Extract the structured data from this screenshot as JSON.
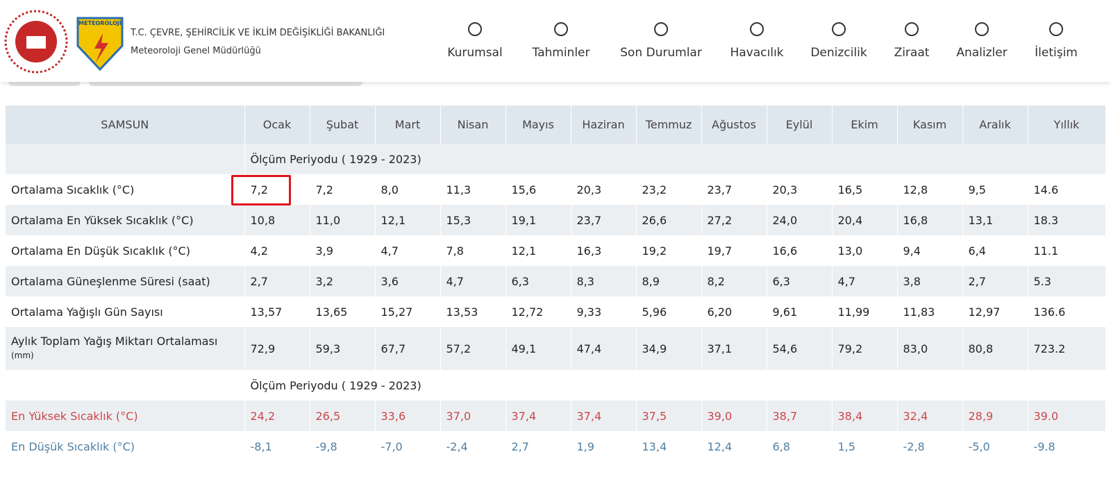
{
  "header": {
    "ministry": "T.C. ÇEVRE, ŞEHİRCİLİK VE İKLİM DEĞİŞİKLİĞİ BAKANLIĞI",
    "directorate": "Meteoroloji Genel Müdürlüğü",
    "logo_text": "METEOROLOJİ"
  },
  "nav": [
    "Kurumsal",
    "Tahminler",
    "Son Durumlar",
    "Havacılık",
    "Denizcilik",
    "Ziraat",
    "Analizler",
    "İletişim"
  ],
  "table": {
    "city": "SAMSUN",
    "columns": [
      "Ocak",
      "Şubat",
      "Mart",
      "Nisan",
      "Mayıs",
      "Haziran",
      "Temmuz",
      "Ağustos",
      "Eylül",
      "Ekim",
      "Kasım",
      "Aralık",
      "Yıllık"
    ],
    "sections": [
      {
        "period": "Ölçüm Periyodu ( 1929 - 2023)",
        "rows": [
          {
            "label": "Ortalama Sıcaklık (°C)",
            "values": [
              "7,2",
              "7,2",
              "8,0",
              "11,3",
              "15,6",
              "20,3",
              "23,2",
              "23,7",
              "20,3",
              "16,5",
              "12,8",
              "9,5",
              "14.6"
            ]
          },
          {
            "label": "Ortalama En Yüksek Sıcaklık (°C)",
            "values": [
              "10,8",
              "11,0",
              "12,1",
              "15,3",
              "19,1",
              "23,7",
              "26,6",
              "27,2",
              "24,0",
              "20,4",
              "16,8",
              "13,1",
              "18.3"
            ]
          },
          {
            "label": "Ortalama En Düşük Sıcaklık (°C)",
            "values": [
              "4,2",
              "3,9",
              "4,7",
              "7,8",
              "12,1",
              "16,3",
              "19,2",
              "19,7",
              "16,6",
              "13,0",
              "9,4",
              "6,4",
              "11.1"
            ]
          },
          {
            "label": "Ortalama Güneşlenme Süresi (saat)",
            "values": [
              "2,7",
              "3,2",
              "3,6",
              "4,7",
              "6,3",
              "8,3",
              "8,9",
              "8,2",
              "6,3",
              "4,7",
              "3,8",
              "2,7",
              "5.3"
            ]
          },
          {
            "label": "Ortalama Yağışlı Gün Sayısı",
            "values": [
              "13,57",
              "13,65",
              "15,27",
              "13,53",
              "12,72",
              "9,33",
              "5,96",
              "6,20",
              "9,61",
              "11,99",
              "11,83",
              "12,97",
              "136.6"
            ]
          },
          {
            "label": "Aylık Toplam Yağış Miktarı Ortalaması",
            "unit": "(mm)",
            "values": [
              "72,9",
              "59,3",
              "67,7",
              "57,2",
              "49,1",
              "47,4",
              "34,9",
              "37,1",
              "54,6",
              "79,2",
              "83,0",
              "80,8",
              "723.2"
            ]
          }
        ]
      },
      {
        "period": "Ölçüm Periyodu ( 1929 - 2023)",
        "rows": [
          {
            "label": "En Yüksek Sıcaklık (°C)",
            "color": "#c9474b",
            "values": [
              "24,2",
              "26,5",
              "33,6",
              "37,0",
              "37,4",
              "37,4",
              "37,5",
              "39,0",
              "38,7",
              "38,4",
              "32,4",
              "28,9",
              "39.0"
            ]
          },
          {
            "label": "En Düşük Sıcaklık (°C)",
            "color": "#4f7fa3",
            "values": [
              "-8,1",
              "-9,8",
              "-7,0",
              "-2,4",
              "2,7",
              "1,9",
              "13,4",
              "12,4",
              "6,8",
              "1,5",
              "-2,8",
              "-5,0",
              "-9.8"
            ]
          }
        ]
      }
    ]
  }
}
